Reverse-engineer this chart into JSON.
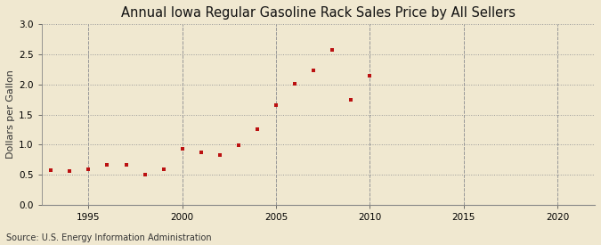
{
  "title": "Annual Iowa Regular Gasoline Rack Sales Price by All Sellers",
  "ylabel": "Dollars per Gallon",
  "source": "Source: U.S. Energy Information Administration",
  "background_color": "#f0e8d0",
  "plot_bg_color": "#f0e8d0",
  "marker_color": "#bb1111",
  "years": [
    1993,
    1994,
    1995,
    1996,
    1997,
    1998,
    1999,
    2000,
    2001,
    2002,
    2003,
    2004,
    2005,
    2006,
    2007,
    2008,
    2009,
    2010
  ],
  "values": [
    0.57,
    0.565,
    0.585,
    0.67,
    0.67,
    0.5,
    0.59,
    0.93,
    0.87,
    0.82,
    0.99,
    1.26,
    1.65,
    2.01,
    2.23,
    2.57,
    1.75,
    2.15
  ],
  "xlim": [
    1992.5,
    2022
  ],
  "ylim": [
    0.0,
    3.0
  ],
  "xticks": [
    1995,
    2000,
    2005,
    2010,
    2015,
    2020
  ],
  "yticks": [
    0.0,
    0.5,
    1.0,
    1.5,
    2.0,
    2.5,
    3.0
  ],
  "title_fontsize": 10.5,
  "label_fontsize": 8,
  "tick_fontsize": 7.5,
  "source_fontsize": 7
}
